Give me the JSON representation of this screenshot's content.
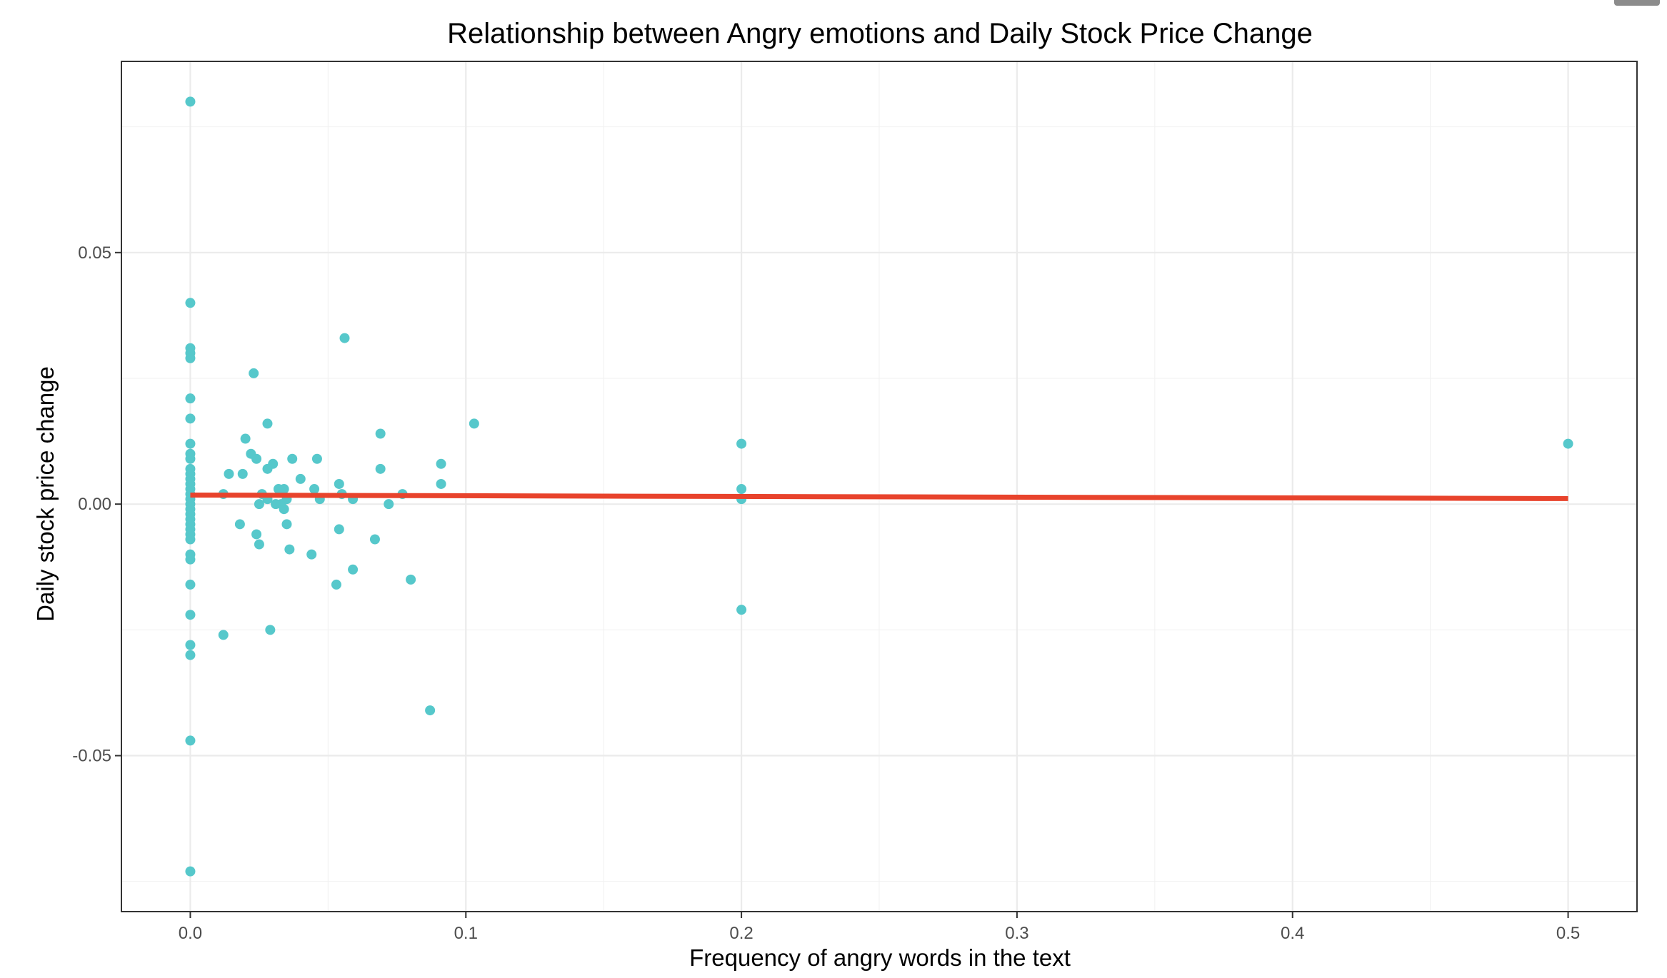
{
  "chart_data": {
    "type": "scatter",
    "title": "Relationship between Angry emotions and Daily Stock Price Change",
    "xlabel": "Frequency of angry words in the text",
    "ylabel": "Daily stock price change",
    "xlim": [
      -0.025,
      0.525
    ],
    "ylim": [
      -0.081,
      0.088
    ],
    "x_ticks": [
      0.0,
      0.1,
      0.2,
      0.3,
      0.4,
      0.5
    ],
    "x_tick_labels": [
      "0.0",
      "0.1",
      "0.2",
      "0.3",
      "0.4",
      "0.5"
    ],
    "y_ticks": [
      -0.05,
      0.0,
      0.05
    ],
    "y_tick_labels": [
      "-0.05",
      "0.00",
      "0.05"
    ],
    "grid": true,
    "point_color": "#56c8cb",
    "line_color": "#e8432c",
    "points": [
      {
        "x": 0.0,
        "y": 0.08
      },
      {
        "x": 0.0,
        "y": 0.04
      },
      {
        "x": 0.0,
        "y": 0.031
      },
      {
        "x": 0.0,
        "y": 0.03
      },
      {
        "x": 0.0,
        "y": 0.029
      },
      {
        "x": 0.0,
        "y": 0.021
      },
      {
        "x": 0.0,
        "y": 0.017
      },
      {
        "x": 0.0,
        "y": 0.012
      },
      {
        "x": 0.0,
        "y": 0.01
      },
      {
        "x": 0.0,
        "y": 0.009
      },
      {
        "x": 0.0,
        "y": 0.007
      },
      {
        "x": 0.0,
        "y": 0.006
      },
      {
        "x": 0.0,
        "y": 0.005
      },
      {
        "x": 0.0,
        "y": 0.004
      },
      {
        "x": 0.0,
        "y": 0.003
      },
      {
        "x": 0.0,
        "y": 0.002
      },
      {
        "x": 0.0,
        "y": 0.001
      },
      {
        "x": 0.0,
        "y": 0.0
      },
      {
        "x": 0.0,
        "y": -0.001
      },
      {
        "x": 0.0,
        "y": -0.002
      },
      {
        "x": 0.0,
        "y": -0.003
      },
      {
        "x": 0.0,
        "y": -0.004
      },
      {
        "x": 0.0,
        "y": -0.005
      },
      {
        "x": 0.0,
        "y": -0.006
      },
      {
        "x": 0.0,
        "y": -0.007
      },
      {
        "x": 0.0,
        "y": -0.01
      },
      {
        "x": 0.0,
        "y": -0.011
      },
      {
        "x": 0.0,
        "y": -0.016
      },
      {
        "x": 0.0,
        "y": -0.022
      },
      {
        "x": 0.0,
        "y": -0.028
      },
      {
        "x": 0.0,
        "y": -0.03
      },
      {
        "x": 0.0,
        "y": -0.047
      },
      {
        "x": 0.0,
        "y": -0.073
      },
      {
        "x": 0.012,
        "y": 0.002
      },
      {
        "x": 0.012,
        "y": -0.026
      },
      {
        "x": 0.014,
        "y": 0.006
      },
      {
        "x": 0.018,
        "y": -0.004
      },
      {
        "x": 0.019,
        "y": 0.006
      },
      {
        "x": 0.02,
        "y": 0.013
      },
      {
        "x": 0.022,
        "y": 0.01
      },
      {
        "x": 0.023,
        "y": 0.026
      },
      {
        "x": 0.024,
        "y": -0.006
      },
      {
        "x": 0.024,
        "y": 0.009
      },
      {
        "x": 0.025,
        "y": 0.0
      },
      {
        "x": 0.025,
        "y": -0.008
      },
      {
        "x": 0.026,
        "y": 0.002
      },
      {
        "x": 0.028,
        "y": 0.016
      },
      {
        "x": 0.028,
        "y": 0.001
      },
      {
        "x": 0.028,
        "y": 0.007
      },
      {
        "x": 0.029,
        "y": -0.025
      },
      {
        "x": 0.03,
        "y": 0.008
      },
      {
        "x": 0.031,
        "y": 0.0
      },
      {
        "x": 0.032,
        "y": 0.003
      },
      {
        "x": 0.033,
        "y": 0.0
      },
      {
        "x": 0.034,
        "y": 0.003
      },
      {
        "x": 0.034,
        "y": -0.001
      },
      {
        "x": 0.035,
        "y": 0.001
      },
      {
        "x": 0.035,
        "y": -0.004
      },
      {
        "x": 0.036,
        "y": -0.009
      },
      {
        "x": 0.037,
        "y": 0.009
      },
      {
        "x": 0.04,
        "y": 0.005
      },
      {
        "x": 0.044,
        "y": -0.01
      },
      {
        "x": 0.045,
        "y": 0.003
      },
      {
        "x": 0.046,
        "y": 0.009
      },
      {
        "x": 0.047,
        "y": 0.001
      },
      {
        "x": 0.053,
        "y": -0.016
      },
      {
        "x": 0.054,
        "y": 0.004
      },
      {
        "x": 0.054,
        "y": -0.005
      },
      {
        "x": 0.055,
        "y": 0.002
      },
      {
        "x": 0.056,
        "y": 0.033
      },
      {
        "x": 0.059,
        "y": 0.001
      },
      {
        "x": 0.059,
        "y": -0.013
      },
      {
        "x": 0.067,
        "y": -0.007
      },
      {
        "x": 0.069,
        "y": 0.014
      },
      {
        "x": 0.069,
        "y": 0.007
      },
      {
        "x": 0.072,
        "y": 0.0
      },
      {
        "x": 0.077,
        "y": 0.002
      },
      {
        "x": 0.08,
        "y": -0.015
      },
      {
        "x": 0.087,
        "y": -0.041
      },
      {
        "x": 0.091,
        "y": 0.008
      },
      {
        "x": 0.091,
        "y": 0.004
      },
      {
        "x": 0.103,
        "y": 0.016
      },
      {
        "x": 0.2,
        "y": 0.012
      },
      {
        "x": 0.2,
        "y": 0.003
      },
      {
        "x": 0.2,
        "y": 0.001
      },
      {
        "x": 0.2,
        "y": -0.021
      },
      {
        "x": 0.5,
        "y": 0.012
      }
    ],
    "trend_line": {
      "x": [
        0.0,
        0.5
      ],
      "y": [
        0.0018,
        0.0011
      ]
    }
  }
}
